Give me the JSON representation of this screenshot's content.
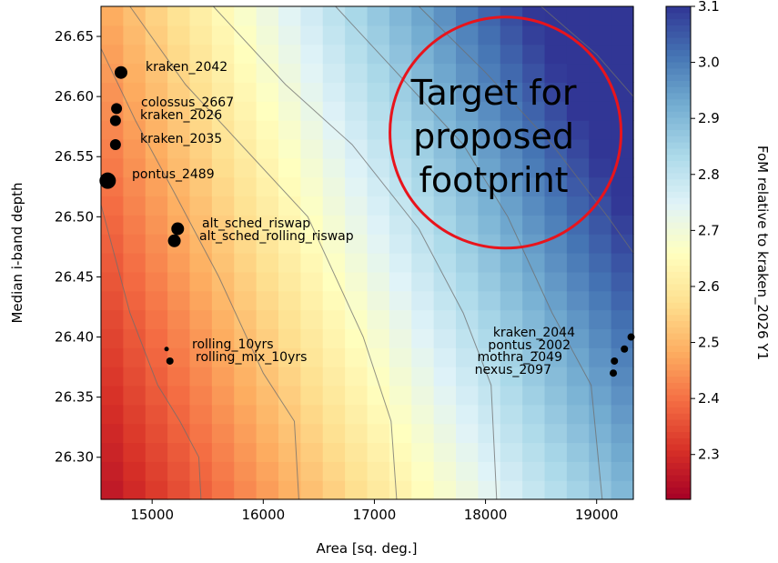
{
  "chart_data": {
    "type": "heatmap",
    "xlabel": "Area [sq. deg.]",
    "ylabel": "Median i-band depth",
    "xlim": [
      14540,
      19330
    ],
    "ylim": [
      26.265,
      26.675
    ],
    "x_ticks": [
      15000,
      16000,
      17000,
      18000,
      19000
    ],
    "y_ticks": [
      26.3,
      26.35,
      26.4,
      26.45,
      26.5,
      26.55,
      26.6,
      26.65
    ],
    "colorbar": {
      "label": "FoM relative to kraken_2026 Y1",
      "range": [
        2.22,
        3.1
      ],
      "ticks": [
        2.3,
        2.4,
        2.5,
        2.6,
        2.7,
        2.8,
        2.9,
        3.0,
        3.1
      ],
      "colormap": "RdYlBu"
    },
    "grid": false,
    "contours": [
      [
        [
          14540,
          26.51
        ],
        [
          14800,
          26.42
        ],
        [
          15050,
          26.36
        ],
        [
          15250,
          26.33
        ],
        [
          15420,
          26.3
        ],
        [
          15440,
          26.265
        ]
      ],
      [
        [
          14540,
          26.64
        ],
        [
          14850,
          26.58
        ],
        [
          15200,
          26.52
        ],
        [
          15600,
          26.45
        ],
        [
          16000,
          26.37
        ],
        [
          16280,
          26.33
        ],
        [
          16320,
          26.265
        ]
      ],
      [
        [
          14800,
          26.675
        ],
        [
          15300,
          26.61
        ],
        [
          15800,
          26.56
        ],
        [
          16400,
          26.5
        ],
        [
          16900,
          26.4
        ],
        [
          17150,
          26.33
        ],
        [
          17200,
          26.265
        ]
      ],
      [
        [
          15550,
          26.675
        ],
        [
          16200,
          26.61
        ],
        [
          16800,
          26.56
        ],
        [
          17400,
          26.49
        ],
        [
          17800,
          26.42
        ],
        [
          18050,
          26.36
        ],
        [
          18100,
          26.265
        ]
      ],
      [
        [
          16650,
          26.675
        ],
        [
          17200,
          26.62
        ],
        [
          17800,
          26.56
        ],
        [
          18200,
          26.5
        ],
        [
          18600,
          26.42
        ],
        [
          18950,
          26.36
        ],
        [
          19050,
          26.265
        ]
      ],
      [
        [
          17400,
          26.675
        ],
        [
          18000,
          26.62
        ],
        [
          18600,
          26.56
        ],
        [
          19100,
          26.5
        ],
        [
          19330,
          26.47
        ]
      ],
      [
        [
          18500,
          26.675
        ],
        [
          19000,
          26.635
        ],
        [
          19330,
          26.6
        ]
      ]
    ],
    "points": [
      {
        "label": "kraken_2042",
        "x": 14720,
        "y": 26.62,
        "size": 7
      },
      {
        "label": "colossus_2667",
        "x": 14680,
        "y": 26.59,
        "size": 6
      },
      {
        "label": "kraken_2026",
        "x": 14670,
        "y": 26.58,
        "size": 6
      },
      {
        "label": "kraken_2035",
        "x": 14670,
        "y": 26.56,
        "size": 6
      },
      {
        "label": "pontus_2489",
        "x": 14600,
        "y": 26.53,
        "size": 9
      },
      {
        "label": "alt_sched_riswap",
        "x": 15230,
        "y": 26.49,
        "size": 7
      },
      {
        "label": "alt_sched_rolling_riswap",
        "x": 15200,
        "y": 26.48,
        "size": 7
      },
      {
        "label": "rolling_10yrs",
        "x": 15130,
        "y": 26.39,
        "size": 2.5
      },
      {
        "label": "rolling_mix_10yrs",
        "x": 15160,
        "y": 26.38,
        "size": 4
      },
      {
        "label": "kraken_2044",
        "x": 19310,
        "y": 26.4,
        "size": 4
      },
      {
        "label": "pontus_2002",
        "x": 19250,
        "y": 26.39,
        "size": 4
      },
      {
        "label": "mothra_2049",
        "x": 19160,
        "y": 26.38,
        "size": 4
      },
      {
        "label": "nexus_2097",
        "x": 19150,
        "y": 26.37,
        "size": 4
      }
    ],
    "annotation": {
      "text_lines": [
        "Target for",
        "proposed",
        "footprint"
      ],
      "circle_center": [
        18180,
        26.57
      ],
      "circle_color": "#e8141c"
    }
  }
}
